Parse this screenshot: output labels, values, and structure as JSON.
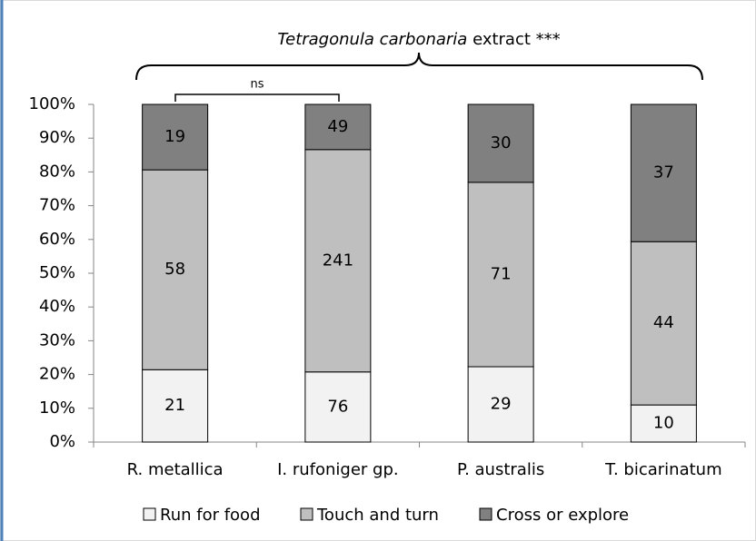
{
  "chart_data": {
    "type": "stacked_percent_bar",
    "title": {
      "italic": "Tetragonula carbonaria",
      "rest": "extract ***"
    },
    "annotation": "ns",
    "categories": [
      "R. metallica",
      "I. rufoniger gp.",
      "P. australis",
      "T. bicarinatum"
    ],
    "series": [
      {
        "name": "Run for food",
        "color": "#f2f2f2",
        "values": [
          21,
          76,
          29,
          10
        ]
      },
      {
        "name": "Touch and turn",
        "color": "#bfbfbf",
        "values": [
          58,
          241,
          71,
          44
        ]
      },
      {
        "name": "Cross or explore",
        "color": "#808080",
        "values": [
          19,
          49,
          30,
          37
        ]
      }
    ],
    "ylim": [
      0,
      100
    ],
    "yticks": [
      {
        "value": 0,
        "label": "0%"
      },
      {
        "value": 10,
        "label": "10%"
      },
      {
        "value": 20,
        "label": "20%"
      },
      {
        "value": 30,
        "label": "30%"
      },
      {
        "value": 40,
        "label": "40%"
      },
      {
        "value": 50,
        "label": "50%"
      },
      {
        "value": 60,
        "label": "60%"
      },
      {
        "value": 70,
        "label": "70%"
      },
      {
        "value": 80,
        "label": "80%"
      },
      {
        "value": 90,
        "label": "90%"
      },
      {
        "value": 100,
        "label": "100%"
      }
    ],
    "legend": "bottom"
  }
}
